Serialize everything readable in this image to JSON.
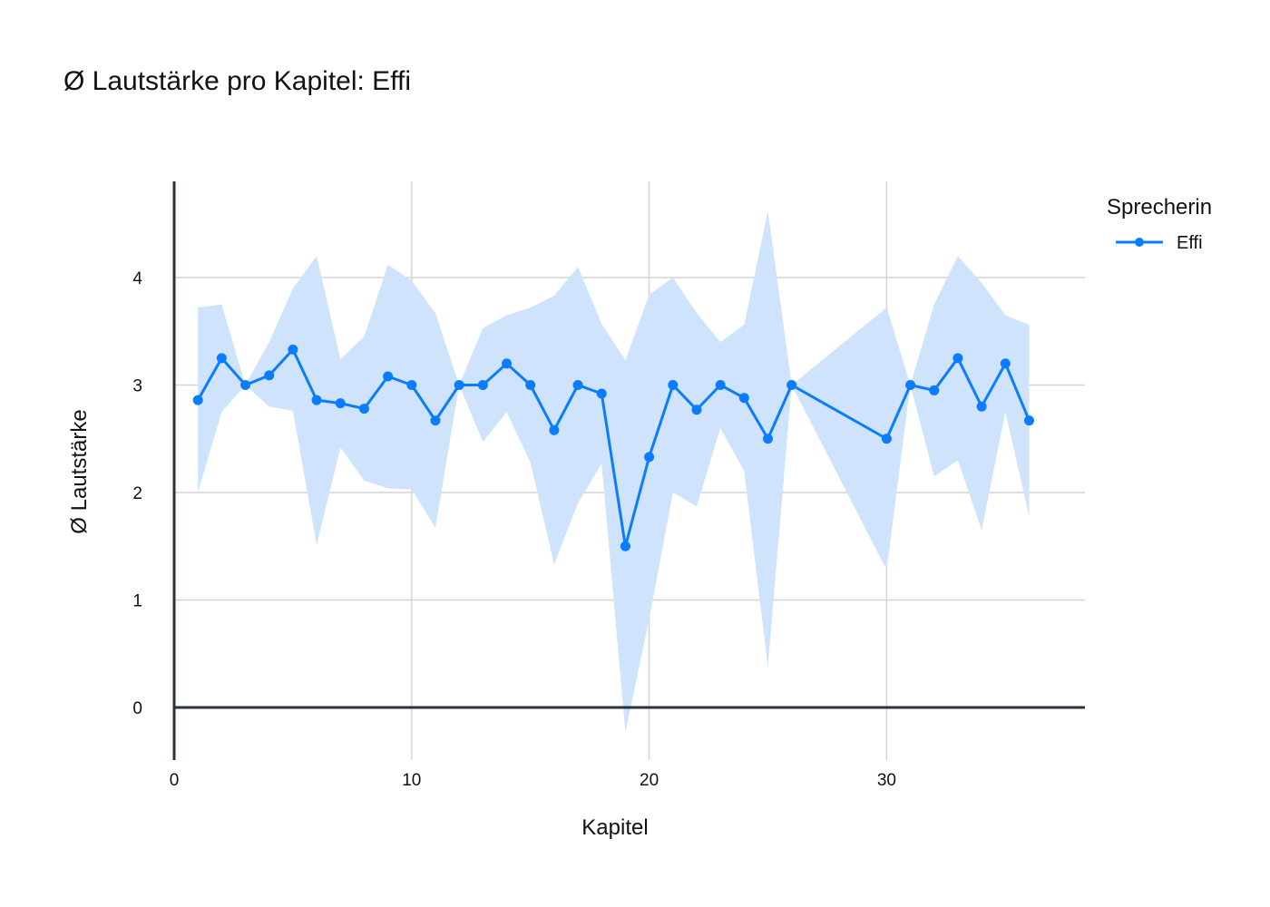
{
  "chart_data": {
    "type": "line",
    "title": "Ø Lautstärke pro Kapitel: Effi",
    "xlabel": "Kapitel",
    "ylabel": "Ø Lautstärke",
    "xlim": [
      -1,
      38.2
    ],
    "ylim": [
      -0.5,
      4.9
    ],
    "x_ticks": [
      0,
      10,
      20,
      30
    ],
    "y_ticks": [
      0,
      1,
      2,
      3,
      4
    ],
    "grid": true,
    "legend": {
      "title": "Sprecherin",
      "placement": "top-right"
    },
    "colors": {
      "line": "#0a7cff",
      "band": "#cfe3fd",
      "grid": "#d4d4d4",
      "axis": "#2a3440"
    },
    "series": [
      {
        "name": "Effi",
        "x": [
          1,
          2,
          3,
          4,
          5,
          6,
          7,
          8,
          9,
          10,
          11,
          12,
          13,
          14,
          15,
          16,
          17,
          18,
          19,
          20,
          21,
          22,
          23,
          24,
          25,
          26,
          30,
          31,
          32,
          33,
          34,
          35,
          36
        ],
        "y": [
          2.86,
          3.25,
          3.0,
          3.09,
          3.33,
          2.86,
          2.83,
          2.78,
          3.08,
          3.0,
          2.67,
          3.0,
          3.0,
          3.2,
          3.0,
          2.58,
          3.0,
          2.92,
          1.5,
          2.33,
          3.0,
          2.77,
          3.0,
          2.88,
          2.5,
          3.0,
          2.5,
          3.0,
          2.95,
          3.25,
          2.8,
          3.2,
          2.67
        ],
        "upper": [
          3.72,
          3.75,
          3.0,
          3.4,
          3.9,
          4.2,
          3.24,
          3.45,
          4.12,
          3.97,
          3.67,
          3.0,
          3.53,
          3.65,
          3.72,
          3.83,
          4.1,
          3.57,
          3.23,
          3.84,
          4.0,
          3.67,
          3.4,
          3.56,
          4.62,
          3.0,
          3.72,
          3.0,
          3.75,
          4.2,
          3.95,
          3.65,
          3.56
        ],
        "lower": [
          2.0,
          2.75,
          3.0,
          2.8,
          2.76,
          1.51,
          2.42,
          2.11,
          2.04,
          2.03,
          1.67,
          3.0,
          2.47,
          2.75,
          2.28,
          1.33,
          1.9,
          2.27,
          -0.23,
          0.82,
          2.0,
          1.87,
          2.6,
          2.2,
          0.38,
          3.0,
          1.28,
          3.0,
          2.15,
          2.3,
          1.65,
          2.75,
          1.78
        ]
      }
    ]
  }
}
